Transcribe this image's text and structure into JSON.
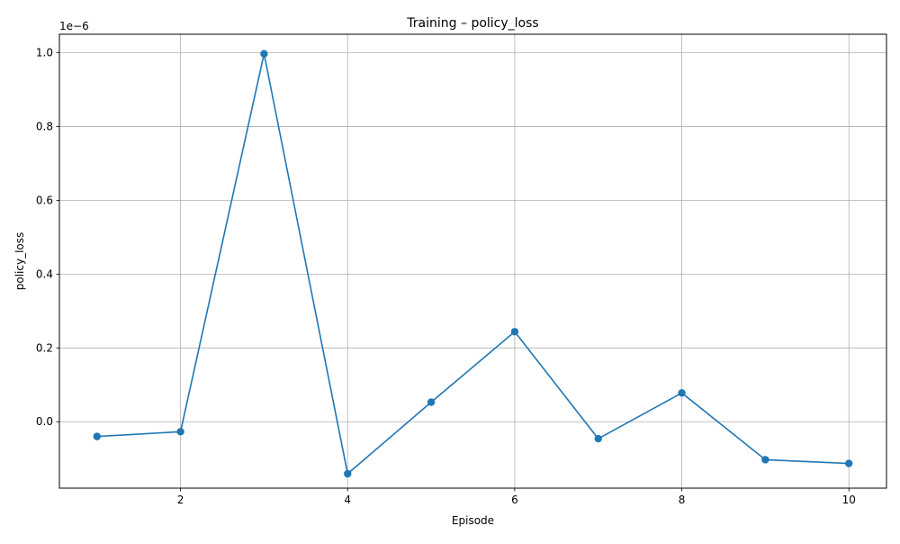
{
  "chart_data": {
    "type": "line",
    "title": "Training – policy_loss",
    "xlabel": "Episode",
    "ylabel": "policy_loss",
    "y_offset_label": "1e−6",
    "x": [
      1,
      2,
      3,
      4,
      5,
      6,
      7,
      8,
      9,
      10
    ],
    "series": [
      {
        "values": [
          -4e-08,
          -2.7e-08,
          9.97e-07,
          -1.41e-07,
          5.3e-08,
          2.44e-07,
          -4.6e-08,
          7.8e-08,
          -1.03e-07,
          -1.13e-07
        ]
      }
    ],
    "x_ticks": [
      2,
      4,
      6,
      8,
      10
    ],
    "x_tick_labels": [
      "2",
      "4",
      "6",
      "8",
      "10"
    ],
    "y_ticks": [
      0.0,
      2e-07,
      4e-07,
      6e-07,
      8e-07,
      1e-06
    ],
    "y_tick_labels": [
      "0.0",
      "0.2",
      "0.4",
      "0.6",
      "0.8",
      "1.0"
    ],
    "xlim": [
      0.55,
      10.45
    ],
    "ylim": [
      -1.8e-07,
      1.05e-06
    ],
    "grid": true,
    "marker": "circle",
    "line_color": "#1f77b4",
    "grid_color": "#b0b0b0"
  }
}
